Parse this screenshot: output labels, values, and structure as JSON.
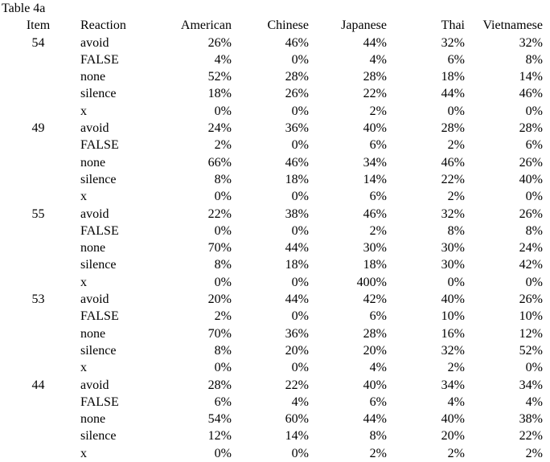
{
  "title": "Table 4a",
  "text_color": "#000000",
  "background_color": "#ffffff",
  "table": {
    "columns": [
      "Item",
      "Reaction",
      "American",
      "Chinese",
      "Japanese",
      "Thai",
      "Vietnamese"
    ],
    "rows": [
      {
        "item": "54",
        "reaction": "avoid",
        "values": [
          "26%",
          "46%",
          "44%",
          "32%",
          "32%"
        ]
      },
      {
        "item": "",
        "reaction": "FALSE",
        "values": [
          "4%",
          "0%",
          "4%",
          "6%",
          "8%"
        ]
      },
      {
        "item": "",
        "reaction": "none",
        "values": [
          "52%",
          "28%",
          "28%",
          "18%",
          "14%"
        ]
      },
      {
        "item": "",
        "reaction": "silence",
        "values": [
          "18%",
          "26%",
          "22%",
          "44%",
          "46%"
        ]
      },
      {
        "item": "",
        "reaction": "x",
        "values": [
          "0%",
          "0%",
          "2%",
          "0%",
          "0%"
        ]
      },
      {
        "item": "49",
        "reaction": "avoid",
        "values": [
          "24%",
          "36%",
          "40%",
          "28%",
          "28%"
        ]
      },
      {
        "item": "",
        "reaction": "FALSE",
        "values": [
          "2%",
          "0%",
          "6%",
          "2%",
          "6%"
        ]
      },
      {
        "item": "",
        "reaction": "none",
        "values": [
          "66%",
          "46%",
          "34%",
          "46%",
          "26%"
        ]
      },
      {
        "item": "",
        "reaction": "silence",
        "values": [
          "8%",
          "18%",
          "14%",
          "22%",
          "40%"
        ]
      },
      {
        "item": "",
        "reaction": "x",
        "values": [
          "0%",
          "0%",
          "6%",
          "2%",
          "0%"
        ]
      },
      {
        "item": "55",
        "reaction": "avoid",
        "values": [
          "22%",
          "38%",
          "46%",
          "32%",
          "26%"
        ]
      },
      {
        "item": "",
        "reaction": "FALSE",
        "values": [
          "0%",
          "0%",
          "2%",
          "8%",
          "8%"
        ]
      },
      {
        "item": "",
        "reaction": "none",
        "values": [
          "70%",
          "44%",
          "30%",
          "30%",
          "24%"
        ]
      },
      {
        "item": "",
        "reaction": "silence",
        "values": [
          "8%",
          "18%",
          "18%",
          "30%",
          "42%"
        ]
      },
      {
        "item": "",
        "reaction": "x",
        "values": [
          "0%",
          "0%",
          "400%",
          "0%",
          "0%"
        ]
      },
      {
        "item": "53",
        "reaction": "avoid",
        "values": [
          "20%",
          "44%",
          "42%",
          "40%",
          "26%"
        ]
      },
      {
        "item": "",
        "reaction": "FALSE",
        "values": [
          "2%",
          "0%",
          "6%",
          "10%",
          "10%"
        ]
      },
      {
        "item": "",
        "reaction": "none",
        "values": [
          "70%",
          "36%",
          "28%",
          "16%",
          "12%"
        ]
      },
      {
        "item": "",
        "reaction": "silence",
        "values": [
          "8%",
          "20%",
          "20%",
          "32%",
          "52%"
        ]
      },
      {
        "item": "",
        "reaction": "x",
        "values": [
          "0%",
          "0%",
          "4%",
          "2%",
          "0%"
        ]
      },
      {
        "item": "44",
        "reaction": "avoid",
        "values": [
          "28%",
          "22%",
          "40%",
          "34%",
          "34%"
        ]
      },
      {
        "item": "",
        "reaction": "FALSE",
        "values": [
          "6%",
          "4%",
          "6%",
          "4%",
          "4%"
        ]
      },
      {
        "item": "",
        "reaction": "none",
        "values": [
          "54%",
          "60%",
          "44%",
          "40%",
          "38%"
        ]
      },
      {
        "item": "",
        "reaction": "silence",
        "values": [
          "12%",
          "14%",
          "8%",
          "20%",
          "22%"
        ]
      },
      {
        "item": "",
        "reaction": "x",
        "values": [
          "0%",
          "0%",
          "2%",
          "2%",
          "2%"
        ]
      }
    ]
  }
}
